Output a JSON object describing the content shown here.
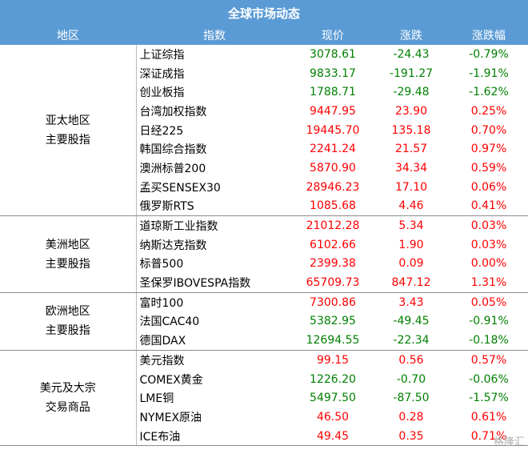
{
  "title": "全球市场动态",
  "headers": {
    "region": "地区",
    "index": "指数",
    "price": "现价",
    "change": "涨跌",
    "change_pct": "涨跌幅"
  },
  "colors": {
    "header_bg": "#5b9bd5",
    "up": "#ff0000",
    "down": "#008000"
  },
  "groups": [
    {
      "region": "亚太地区\n主要股指",
      "rows": [
        {
          "name": "上证综指",
          "price": "3078.61",
          "change": "-24.43",
          "pct": "-0.79%",
          "dir": "down"
        },
        {
          "name": "深证成指",
          "price": "9833.17",
          "change": "-191.27",
          "pct": "-1.91%",
          "dir": "down"
        },
        {
          "name": "创业板指",
          "price": "1788.71",
          "change": "-29.48",
          "pct": "-1.62%",
          "dir": "down"
        },
        {
          "name": "台湾加权指数",
          "price": "9447.95",
          "change": "23.90",
          "pct": "0.25%",
          "dir": "up"
        },
        {
          "name": "日经225",
          "price": "19445.70",
          "change": "135.18",
          "pct": "0.70%",
          "dir": "up"
        },
        {
          "name": "韩国综合指数",
          "price": "2241.24",
          "change": "21.57",
          "pct": "0.97%",
          "dir": "up"
        },
        {
          "name": "澳洲标普200",
          "price": "5870.90",
          "change": "34.34",
          "pct": "0.59%",
          "dir": "up"
        },
        {
          "name": "孟买SENSEX30",
          "price": "28946.23",
          "change": "17.10",
          "pct": "0.06%",
          "dir": "up"
        },
        {
          "name": "俄罗斯RTS",
          "price": "1085.68",
          "change": "4.46",
          "pct": "0.41%",
          "dir": "up"
        }
      ]
    },
    {
      "region": "美洲地区\n主要股指",
      "rows": [
        {
          "name": "道琼斯工业指数",
          "price": "21012.28",
          "change": "5.34",
          "pct": "0.03%",
          "dir": "up"
        },
        {
          "name": "纳斯达克指数",
          "price": "6102.66",
          "change": "1.90",
          "pct": "0.03%",
          "dir": "up"
        },
        {
          "name": "标普500",
          "price": "2399.38",
          "change": "0.09",
          "pct": "0.00%",
          "dir": "up"
        },
        {
          "name": "圣保罗IBOVESPA指数",
          "price": "65709.73",
          "change": "847.12",
          "pct": "1.31%",
          "dir": "up"
        }
      ]
    },
    {
      "region": "欧洲地区\n主要股指",
      "rows": [
        {
          "name": "富时100",
          "price": "7300.86",
          "change": "3.43",
          "pct": "0.05%",
          "dir": "up"
        },
        {
          "name": "法国CAC40",
          "price": "5382.95",
          "change": "-49.45",
          "pct": "-0.91%",
          "dir": "down"
        },
        {
          "name": "德国DAX",
          "price": "12694.55",
          "change": "-22.34",
          "pct": "-0.18%",
          "dir": "down"
        }
      ]
    },
    {
      "region": "美元及大宗\n交易商品",
      "rows": [
        {
          "name": "美元指数",
          "price": "99.15",
          "change": "0.56",
          "pct": "0.57%",
          "dir": "up"
        },
        {
          "name": "COMEX黄金",
          "price": "1226.20",
          "change": "-0.70",
          "pct": "-0.06%",
          "dir": "down"
        },
        {
          "name": "LME铜",
          "price": "5497.50",
          "change": "-87.50",
          "pct": "-1.57%",
          "dir": "down"
        },
        {
          "name": "NYMEX原油",
          "price": "46.50",
          "change": "0.28",
          "pct": "0.61%",
          "dir": "up"
        },
        {
          "name": "ICE布油",
          "price": "49.45",
          "change": "0.35",
          "pct": "0.71%",
          "dir": "up"
        }
      ]
    }
  ],
  "watermark": "格隆汇"
}
